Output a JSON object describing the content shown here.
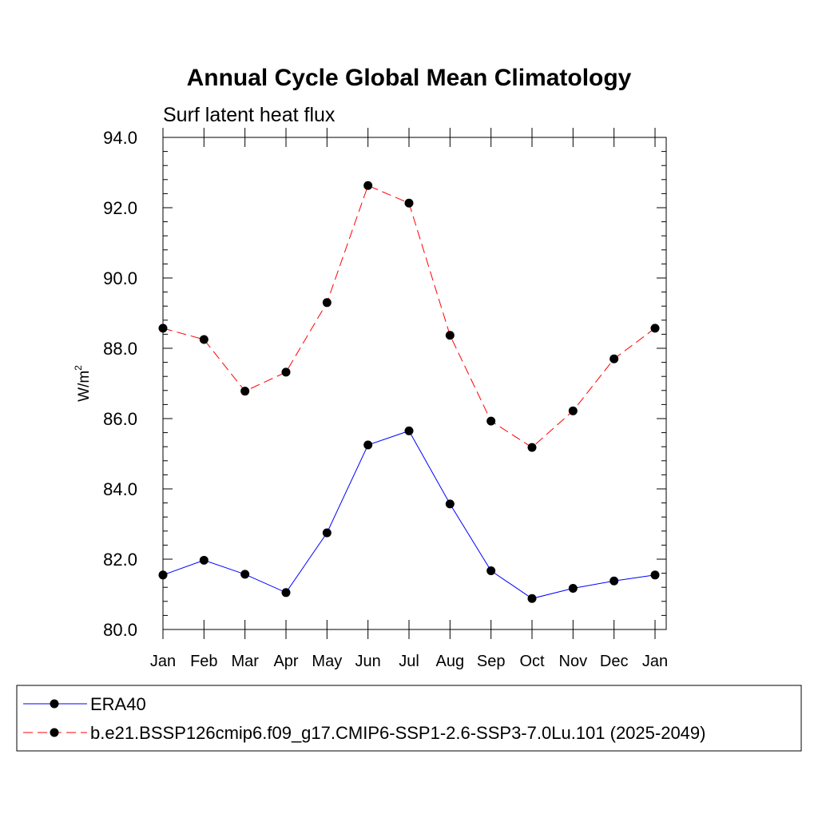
{
  "chart_data": {
    "type": "line",
    "title": "Annual Cycle Global Mean Climatology",
    "subtitle": "Surf latent heat flux",
    "xlabel": "",
    "ylabel": "W/m",
    "ylabel_superscript": "2",
    "categories": [
      "Jan",
      "Feb",
      "Mar",
      "Apr",
      "May",
      "Jun",
      "Jul",
      "Aug",
      "Sep",
      "Oct",
      "Nov",
      "Dec",
      "Jan"
    ],
    "ylim": [
      80.0,
      94.0
    ],
    "yticks": [
      "80.0",
      "82.0",
      "84.0",
      "86.0",
      "88.0",
      "90.0",
      "92.0",
      "94.0"
    ],
    "grid": false,
    "legend_position": "bottom",
    "series": [
      {
        "name": "ERA40",
        "color": "#0000ff",
        "line_style": "solid",
        "marker": "filled-circle",
        "values": [
          81.55,
          81.97,
          81.57,
          81.05,
          82.75,
          85.25,
          85.65,
          83.57,
          81.67,
          80.88,
          81.17,
          81.38,
          81.55
        ]
      },
      {
        "name": "b.e21.BSSP126cmip6.f09_g17.CMIP6-SSP1-2.6-SSP3-7.0Lu.101 (2025-2049)",
        "color": "#ff0000",
        "line_style": "dashed",
        "marker": "filled-circle",
        "values": [
          88.57,
          88.25,
          86.78,
          87.32,
          89.3,
          92.63,
          92.13,
          88.37,
          85.93,
          85.18,
          86.22,
          87.7,
          88.57
        ]
      }
    ]
  }
}
